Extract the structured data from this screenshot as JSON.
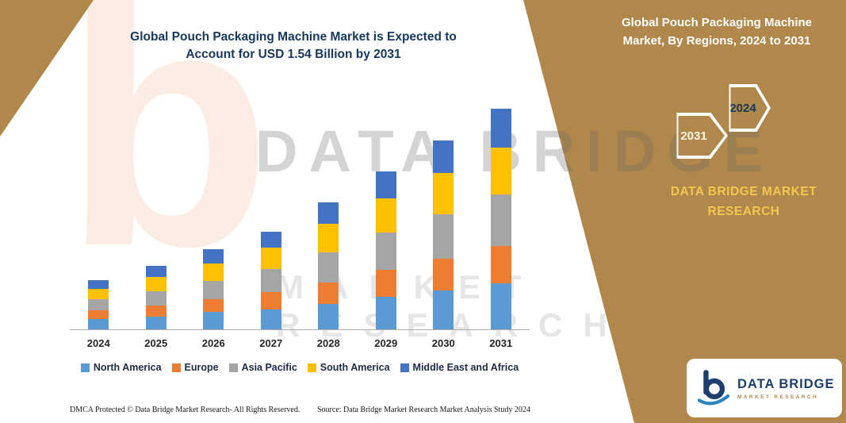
{
  "page": {
    "title_line1": "Global Pouch Packaging Machine Market is Expected to",
    "title_line2": "Account for USD 1.54 Billion by 2031"
  },
  "banner": {
    "heading": "Global Pouch Packaging Machine Market, By Regions, 2024 to 2031",
    "hexagon_left": "2031",
    "hexagon_right": "2024",
    "brand_line1": "DATA BRIDGE MARKET",
    "brand_line2": "RESEARCH",
    "accent_color": "#b1884b",
    "brand_text_color": "#f3c64f"
  },
  "watermark": {
    "line1": "DATA BRIDGE",
    "line2": "MARKET RESEARCH",
    "logo_glyph": "b"
  },
  "chart_data": {
    "type": "bar",
    "stacked": true,
    "title": "Global Pouch Packaging Machine Market is Expected to Account for USD 1.54 Billion by 2031",
    "unit": "USD Billion",
    "xlabel": "",
    "ylabel": "",
    "ylim": [
      0,
      1.6
    ],
    "grid": false,
    "legend_position": "bottom",
    "categories": [
      "2024",
      "2025",
      "2026",
      "2027",
      "2028",
      "2029",
      "2030",
      "2031"
    ],
    "series": [
      {
        "name": "North America",
        "color": "#5B9BD5",
        "values": [
          0.07,
          0.09,
          0.12,
          0.14,
          0.18,
          0.23,
          0.27,
          0.32
        ]
      },
      {
        "name": "Europe",
        "color": "#ED7D31",
        "values": [
          0.06,
          0.08,
          0.09,
          0.12,
          0.15,
          0.19,
          0.22,
          0.26
        ]
      },
      {
        "name": "Asia Pacific",
        "color": "#A5A5A5",
        "values": [
          0.08,
          0.1,
          0.13,
          0.16,
          0.21,
          0.26,
          0.31,
          0.36
        ]
      },
      {
        "name": "South America",
        "color": "#FFC000",
        "values": [
          0.07,
          0.1,
          0.12,
          0.15,
          0.2,
          0.24,
          0.29,
          0.33
        ]
      },
      {
        "name": "Middle East and Africa",
        "color": "#4472C4",
        "values": [
          0.06,
          0.08,
          0.1,
          0.11,
          0.15,
          0.19,
          0.23,
          0.27
        ]
      }
    ],
    "totals": [
      0.34,
      0.45,
      0.56,
      0.68,
      0.89,
      1.11,
      1.32,
      1.54
    ]
  },
  "footer": {
    "left": "DMCA Protected © Data Bridge Market Research-  All Rights Reserved.",
    "source": "Source: Data Bridge Market Research  Market Analysis Study 2024"
  },
  "logo": {
    "name": "DATA BRIDGE",
    "subtitle": "MARKET RESEARCH"
  }
}
